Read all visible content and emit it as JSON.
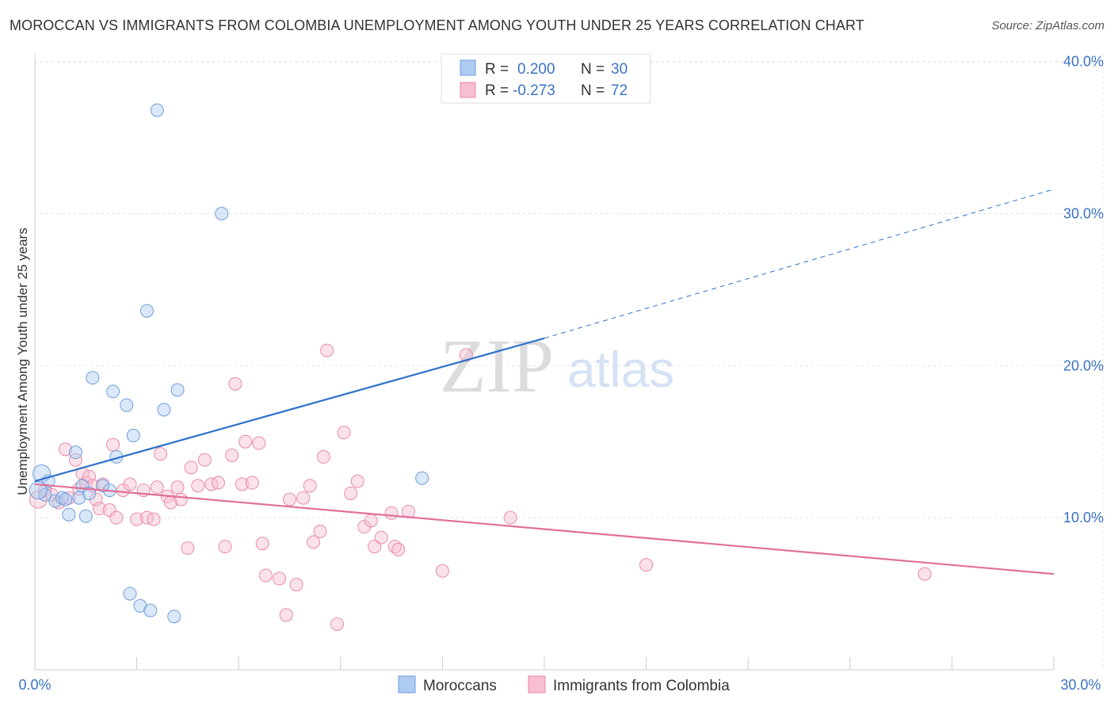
{
  "title": "MOROCCAN VS IMMIGRANTS FROM COLOMBIA UNEMPLOYMENT AMONG YOUTH UNDER 25 YEARS CORRELATION CHART",
  "source": "Source: ZipAtlas.com",
  "watermark": {
    "zip": "ZIP",
    "atlas": "atlas"
  },
  "colors": {
    "blue_fill": "#aecbf2",
    "blue_stroke": "#6f9fdc",
    "blue_line": "#2f72cc",
    "pink_fill": "#f7bfd0",
    "pink_stroke": "#e88aa8",
    "pink_line": "#e0709a",
    "tick_label": "#3b73c4",
    "grid": "#e2e2e2"
  },
  "legend": {
    "rows": [
      {
        "r_label": "R =",
        "r_value": "0.200",
        "n_label": "N =",
        "n_value": "30"
      },
      {
        "r_label": "R =",
        "r_value": "-0.273",
        "n_label": "N =",
        "n_value": "72"
      }
    ]
  },
  "bottom_legend": [
    "Moroccans",
    "Immigrants from Colombia"
  ],
  "chart_data": {
    "type": "scatter",
    "title": "MOROCCAN VS IMMIGRANTS FROM COLOMBIA UNEMPLOYMENT AMONG YOUTH UNDER 25 YEARS CORRELATION CHART",
    "xlabel": "",
    "ylabel": "Unemployment Among Youth under 25 years",
    "xlim": [
      0,
      30
    ],
    "ylim": [
      0,
      40.5
    ],
    "x_tick_labels": [
      "0.0%",
      "30.0%"
    ],
    "y_ticks": [
      10,
      20,
      30,
      40
    ],
    "y_tick_labels": [
      "10.0%",
      "20.0%",
      "30.0%",
      "40.0%"
    ],
    "series": [
      {
        "name": "Moroccans",
        "r": 0.2,
        "n": 30,
        "trend": {
          "x0": 0,
          "y0": 12.4,
          "x1": 15,
          "y1": 21.8,
          "dash_x1": 30,
          "dash_y1": 31.6
        },
        "points": [
          [
            0.2,
            12.9
          ],
          [
            0.4,
            12.4
          ],
          [
            0.3,
            11.5
          ],
          [
            0.6,
            11.1
          ],
          [
            0.8,
            11.3
          ],
          [
            0.9,
            11.2
          ],
          [
            1.0,
            10.2
          ],
          [
            1.2,
            14.3
          ],
          [
            1.3,
            11.3
          ],
          [
            1.4,
            12.1
          ],
          [
            1.5,
            10.1
          ],
          [
            1.6,
            11.6
          ],
          [
            1.7,
            19.2
          ],
          [
            2.0,
            12.1
          ],
          [
            2.2,
            11.8
          ],
          [
            2.3,
            18.3
          ],
          [
            2.4,
            14.0
          ],
          [
            2.7,
            17.4
          ],
          [
            2.8,
            5.0
          ],
          [
            2.9,
            15.4
          ],
          [
            3.1,
            4.2
          ],
          [
            3.3,
            23.6
          ],
          [
            3.4,
            3.9
          ],
          [
            3.6,
            36.8
          ],
          [
            3.8,
            17.1
          ],
          [
            4.1,
            3.5
          ],
          [
            4.2,
            18.4
          ],
          [
            5.5,
            30.0
          ],
          [
            11.4,
            12.6
          ],
          [
            0.1,
            11.8
          ]
        ]
      },
      {
        "name": "Immigrants from Colombia",
        "r": -0.273,
        "n": 72,
        "trend": {
          "x0": 0,
          "y0": 12.2,
          "x1": 30,
          "y1": 6.3
        },
        "points": [
          [
            0.1,
            11.2
          ],
          [
            0.3,
            11.8
          ],
          [
            0.5,
            11.5
          ],
          [
            0.7,
            11.0
          ],
          [
            0.9,
            14.5
          ],
          [
            1.0,
            11.3
          ],
          [
            1.2,
            13.8
          ],
          [
            1.3,
            11.9
          ],
          [
            1.4,
            12.9
          ],
          [
            1.5,
            12.3
          ],
          [
            1.6,
            12.7
          ],
          [
            1.7,
            12.1
          ],
          [
            1.8,
            11.2
          ],
          [
            1.9,
            10.6
          ],
          [
            2.0,
            12.2
          ],
          [
            2.2,
            10.5
          ],
          [
            2.3,
            14.8
          ],
          [
            2.4,
            10.0
          ],
          [
            2.6,
            11.8
          ],
          [
            2.8,
            12.2
          ],
          [
            3.0,
            9.9
          ],
          [
            3.2,
            11.8
          ],
          [
            3.3,
            10.0
          ],
          [
            3.5,
            9.9
          ],
          [
            3.6,
            12.0
          ],
          [
            3.7,
            14.2
          ],
          [
            3.9,
            11.4
          ],
          [
            4.0,
            11.0
          ],
          [
            4.2,
            12.0
          ],
          [
            4.3,
            11.2
          ],
          [
            4.5,
            8.0
          ],
          [
            4.6,
            13.3
          ],
          [
            4.8,
            12.1
          ],
          [
            5.0,
            13.8
          ],
          [
            5.2,
            12.2
          ],
          [
            5.4,
            12.3
          ],
          [
            5.6,
            8.1
          ],
          [
            5.8,
            14.1
          ],
          [
            5.9,
            18.8
          ],
          [
            6.1,
            12.2
          ],
          [
            6.2,
            15.0
          ],
          [
            6.4,
            12.3
          ],
          [
            6.6,
            14.9
          ],
          [
            6.7,
            8.3
          ],
          [
            6.8,
            6.2
          ],
          [
            7.2,
            6.0
          ],
          [
            7.4,
            3.6
          ],
          [
            7.5,
            11.2
          ],
          [
            7.7,
            5.6
          ],
          [
            7.9,
            11.3
          ],
          [
            8.1,
            12.1
          ],
          [
            8.2,
            8.4
          ],
          [
            8.4,
            9.1
          ],
          [
            8.5,
            14.0
          ],
          [
            8.6,
            21.0
          ],
          [
            8.9,
            3.0
          ],
          [
            9.1,
            15.6
          ],
          [
            9.3,
            11.6
          ],
          [
            9.5,
            12.4
          ],
          [
            9.7,
            9.4
          ],
          [
            9.9,
            9.8
          ],
          [
            10.0,
            8.1
          ],
          [
            10.2,
            8.7
          ],
          [
            10.5,
            10.3
          ],
          [
            10.6,
            8.1
          ],
          [
            10.7,
            7.9
          ],
          [
            11.0,
            10.4
          ],
          [
            12.0,
            6.5
          ],
          [
            12.7,
            20.7
          ],
          [
            14.0,
            10.0
          ],
          [
            18.0,
            6.9
          ],
          [
            26.2,
            6.3
          ]
        ]
      }
    ]
  }
}
